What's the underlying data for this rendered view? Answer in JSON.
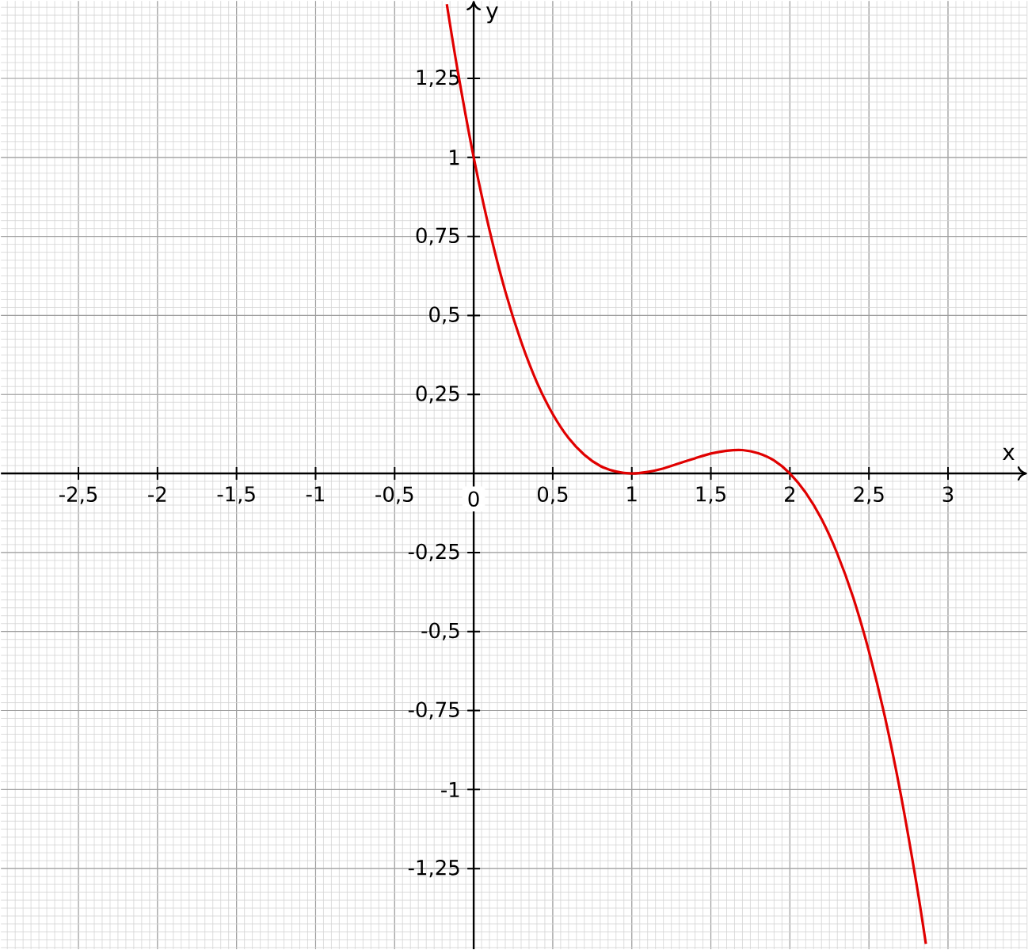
{
  "chart_data": {
    "type": "line",
    "xlabel": "x",
    "ylabel": "y",
    "xlim": [
      -2.99,
      3.5
    ],
    "ylim": [
      -1.505,
      1.495
    ],
    "xticks": [
      {
        "value": -2.5,
        "label": "-2,5"
      },
      {
        "value": -2,
        "label": "-2"
      },
      {
        "value": -1.5,
        "label": "-1,5"
      },
      {
        "value": -1,
        "label": "-1"
      },
      {
        "value": -0.5,
        "label": "-0,5"
      },
      {
        "value": 0,
        "label": "0"
      },
      {
        "value": 0.5,
        "label": "0,5"
      },
      {
        "value": 1,
        "label": "1"
      },
      {
        "value": 1.5,
        "label": "1,5"
      },
      {
        "value": 2,
        "label": "2"
      },
      {
        "value": 2.5,
        "label": "2,5"
      },
      {
        "value": 3,
        "label": "3"
      }
    ],
    "yticks": [
      {
        "value": -1.25,
        "label": "-1,25"
      },
      {
        "value": -1,
        "label": "-1"
      },
      {
        "value": -0.75,
        "label": "-0,75"
      },
      {
        "value": -0.5,
        "label": "-0,5"
      },
      {
        "value": -0.25,
        "label": "-0,25"
      },
      {
        "value": 0.25,
        "label": "0,25"
      },
      {
        "value": 0.5,
        "label": "0,5"
      },
      {
        "value": 0.75,
        "label": "0,75"
      },
      {
        "value": 1,
        "label": "1"
      },
      {
        "value": 1.25,
        "label": "1,25"
      }
    ],
    "grid": true,
    "line_style": "solid",
    "x": [
      -0.17,
      -0.1,
      0,
      0.1,
      0.2,
      0.3,
      0.4,
      0.5,
      0.6,
      0.7,
      0.8,
      0.9,
      1.0,
      1.1,
      1.2,
      1.3,
      1.4,
      1.5,
      1.6,
      1.7,
      1.8,
      1.9,
      2.0,
      2.1,
      2.2,
      2.3,
      2.4,
      2.5,
      2.6,
      2.7,
      2.8,
      2.86
    ],
    "series": [
      {
        "color": "#e00000",
        "values": [
          1.485,
          1.271,
          1.0,
          0.77,
          0.576,
          0.417,
          0.288,
          0.188,
          0.112,
          0.059,
          0.024,
          0.006,
          0.0,
          0.005,
          0.016,
          0.032,
          0.048,
          0.063,
          0.072,
          0.074,
          0.064,
          0.041,
          0.0,
          -0.061,
          -0.144,
          -0.254,
          -0.392,
          -0.563,
          -0.768,
          -1.012,
          -1.296,
          -1.488
        ]
      }
    ]
  }
}
